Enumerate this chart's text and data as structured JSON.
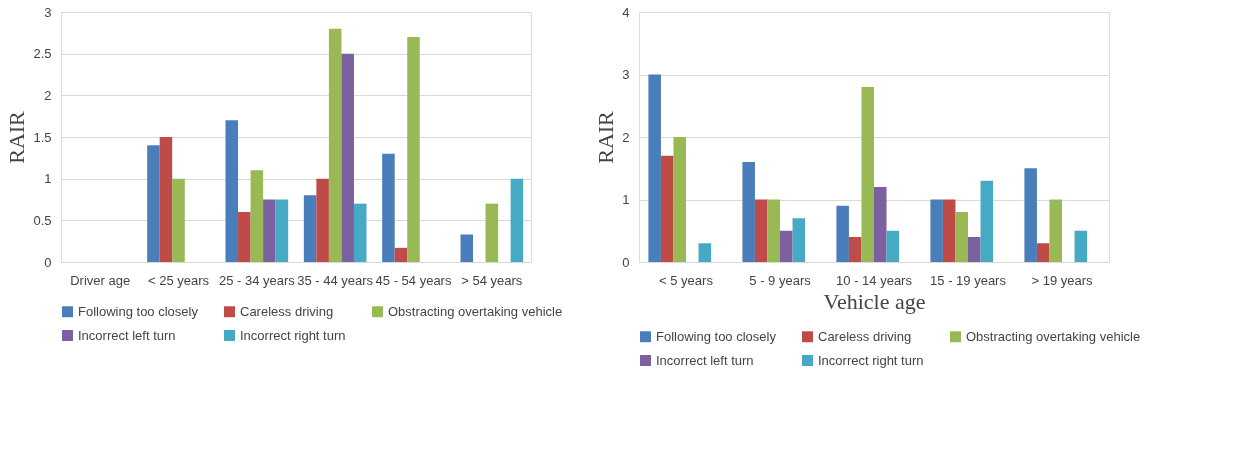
{
  "chart_data": [
    {
      "type": "bar",
      "ylabel": "RAIR",
      "categories": [
        "Driver age",
        "< 25 years",
        "25 - 34 years",
        "35  - 44 years",
        "45  - 54 years",
        "> 54 years"
      ],
      "ylim": [
        0,
        3
      ],
      "yticks": [
        0,
        0.5,
        1,
        1.5,
        2,
        2.5,
        3
      ],
      "grid": "y",
      "legend": "bottom",
      "series": [
        {
          "name": "Following too closely",
          "color": "#4a7ebb",
          "values": [
            null,
            1.4,
            1.7,
            0.8,
            1.3,
            0.33
          ]
        },
        {
          "name": "Careless driving",
          "color": "#be4b48",
          "values": [
            null,
            1.5,
            0.6,
            1.0,
            0.17,
            null
          ]
        },
        {
          "name": "Obstracting overtaking vehicle",
          "color": "#98b954",
          "values": [
            null,
            1.0,
            1.1,
            2.8,
            2.7,
            0.7
          ]
        },
        {
          "name": "Incorrect left turn",
          "color": "#7d60a0",
          "values": [
            null,
            null,
            0.75,
            2.5,
            null,
            null
          ]
        },
        {
          "name": "Incorrect right turn",
          "color": "#46aac5",
          "values": [
            null,
            null,
            0.75,
            0.7,
            null,
            1.0
          ]
        }
      ]
    },
    {
      "type": "bar",
      "ylabel": "RAIR",
      "xlabel": "Vehicle age",
      "categories": [
        "< 5 years",
        "5 - 9 years",
        "10  - 14 years",
        "15  - 19 years",
        "> 19 years"
      ],
      "ylim": [
        0,
        4
      ],
      "yticks": [
        0,
        1,
        2,
        3,
        4
      ],
      "grid": "y",
      "legend": "bottom",
      "series": [
        {
          "name": "Following too closely",
          "color": "#4a7ebb",
          "values": [
            3.0,
            1.6,
            0.9,
            1.0,
            1.5
          ]
        },
        {
          "name": "Careless driving",
          "color": "#be4b48",
          "values": [
            1.7,
            1.0,
            0.4,
            1.0,
            0.3
          ]
        },
        {
          "name": "Obstracting overtaking vehicle",
          "color": "#98b954",
          "values": [
            2.0,
            1.0,
            2.8,
            0.8,
            1.0
          ]
        },
        {
          "name": "Incorrect left turn",
          "color": "#7d60a0",
          "values": [
            null,
            0.5,
            1.2,
            0.4,
            null
          ]
        },
        {
          "name": "Incorrect right turn",
          "color": "#46aac5",
          "values": [
            0.3,
            0.7,
            0.5,
            1.3,
            0.5
          ]
        }
      ]
    }
  ]
}
